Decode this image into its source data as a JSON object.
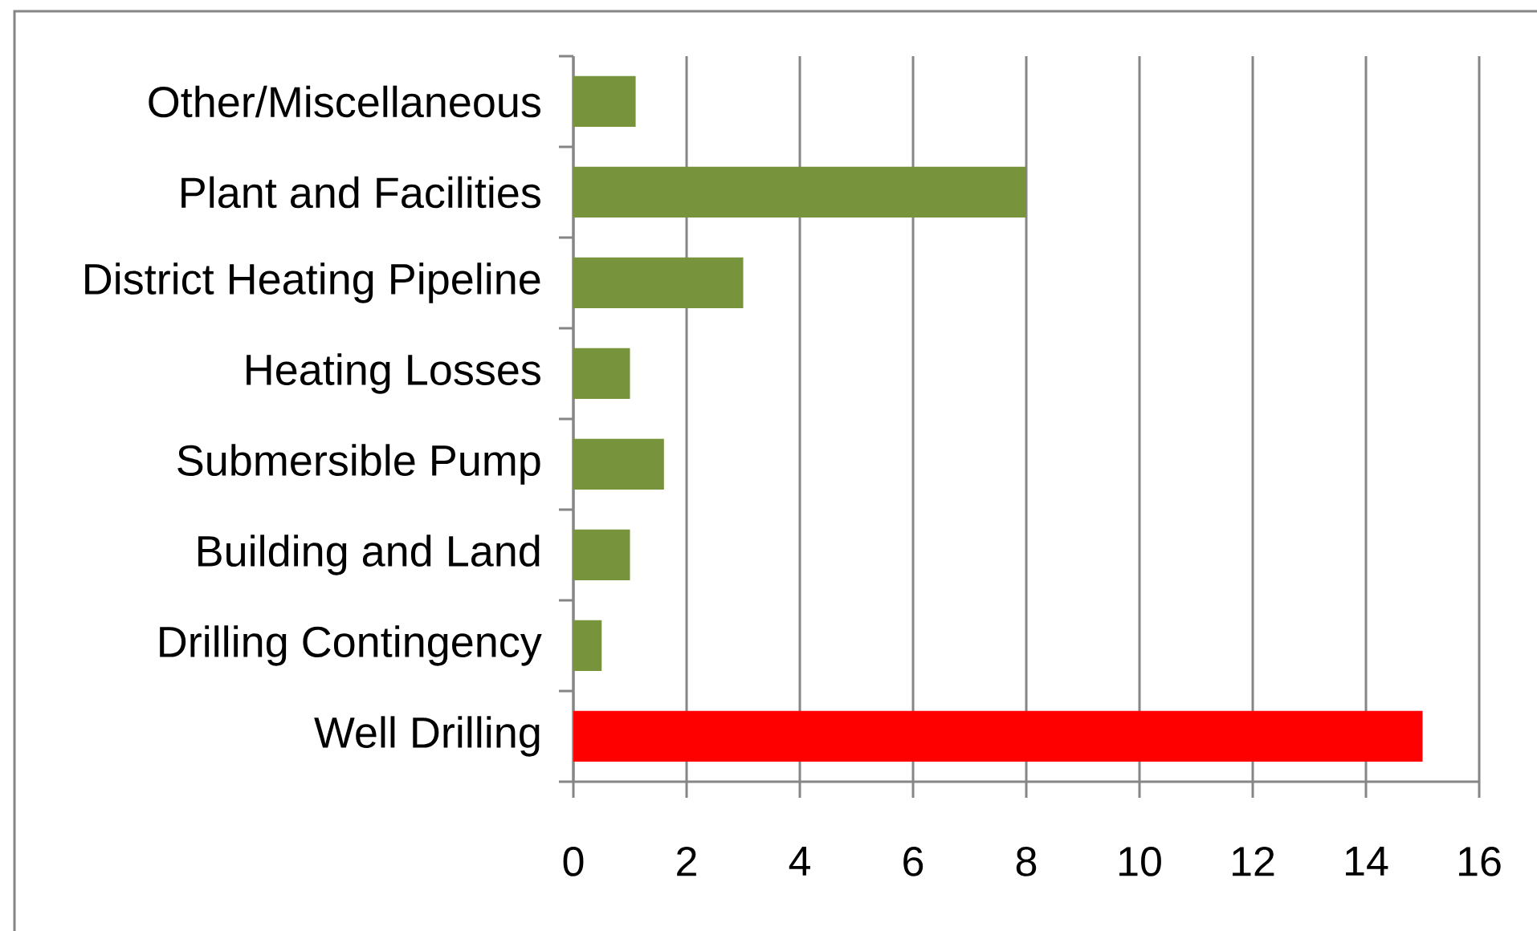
{
  "chart_data": {
    "type": "bar",
    "orientation": "horizontal",
    "categories": [
      "Other/Miscellaneous",
      "Plant and Facilities",
      "District Heating Pipeline",
      "Heating Losses",
      "Submersible Pump",
      "Building and Land",
      "Drilling Contingency",
      "Well Drilling"
    ],
    "values": [
      1.1,
      8,
      3,
      1,
      1.6,
      1,
      0.5,
      15
    ],
    "colors": [
      "#77933c",
      "#77933c",
      "#77933c",
      "#77933c",
      "#77933c",
      "#77933c",
      "#77933c",
      "#ff0000"
    ],
    "xlim": [
      0,
      16
    ],
    "xticks": [
      0,
      2,
      4,
      6,
      8,
      10,
      12,
      14,
      16
    ],
    "grid": "x"
  }
}
